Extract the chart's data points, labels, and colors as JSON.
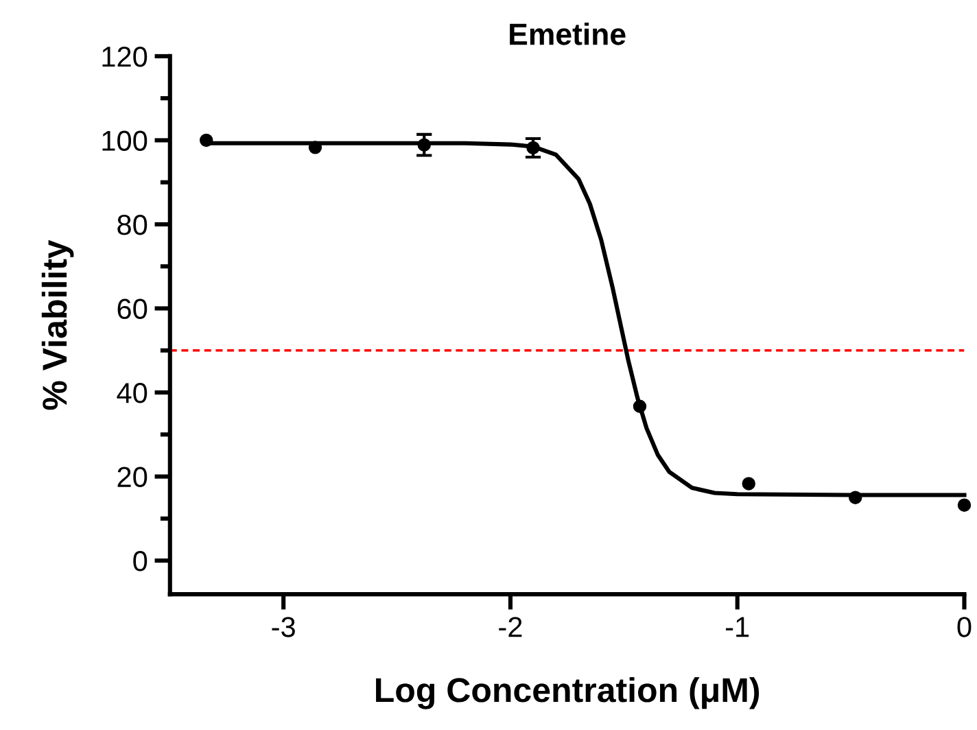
{
  "chart_data": {
    "type": "scatter",
    "title": "Emetine",
    "xlabel": "Log Concentration (μM)",
    "ylabel": "% Viability",
    "xlim": [
      -3.5,
      0
    ],
    "xticks": [
      -3,
      -2,
      -1,
      0
    ],
    "ylim": [
      -8,
      120
    ],
    "yticks": [
      0,
      {
        "value": 10,
        "label": null
      },
      20,
      {
        "value": 30,
        "label": null
      },
      40,
      {
        "value": 50,
        "label": null
      },
      60,
      {
        "value": 70,
        "label": null
      },
      80,
      {
        "value": 90,
        "label": null
      },
      100,
      {
        "value": 110,
        "label": null
      },
      120
    ],
    "grid": false,
    "series": [
      {
        "color": "#000000",
        "marker": "circle",
        "x": [
          -3.34,
          -2.86,
          -2.38,
          -1.9,
          -1.43,
          -0.95,
          -0.48,
          0
        ],
        "values": [
          100,
          98.3,
          98.9,
          98.2,
          36.7,
          18.3,
          15.0,
          13.2
        ],
        "errors": [
          null,
          null,
          2.5,
          2.2,
          null,
          null,
          null,
          null
        ]
      },
      {
        "type": "line",
        "color": "#000000",
        "marker": "none",
        "line_style": "solid",
        "x": [
          -3.34,
          -3,
          -2.5,
          -2.2,
          -2.0,
          -1.9,
          -1.8,
          -1.7,
          -1.65,
          -1.6,
          -1.55,
          -1.52,
          -1.48,
          -1.44,
          -1.4,
          -1.35,
          -1.3,
          -1.2,
          -1.1,
          -1.0,
          -0.5,
          0
        ],
        "values": [
          99.3,
          99.3,
          99.3,
          99.3,
          99.0,
          98.5,
          96.6,
          90.8,
          84.9,
          76.3,
          65.0,
          57.5,
          47.5,
          38.7,
          31.5,
          25.1,
          21.1,
          17.3,
          16.1,
          15.8,
          15.6,
          15.6
        ]
      }
    ],
    "ref_lines": [
      {
        "axis": "y",
        "value": 50,
        "color": "#ff0000",
        "line_style": "dashed"
      }
    ]
  }
}
